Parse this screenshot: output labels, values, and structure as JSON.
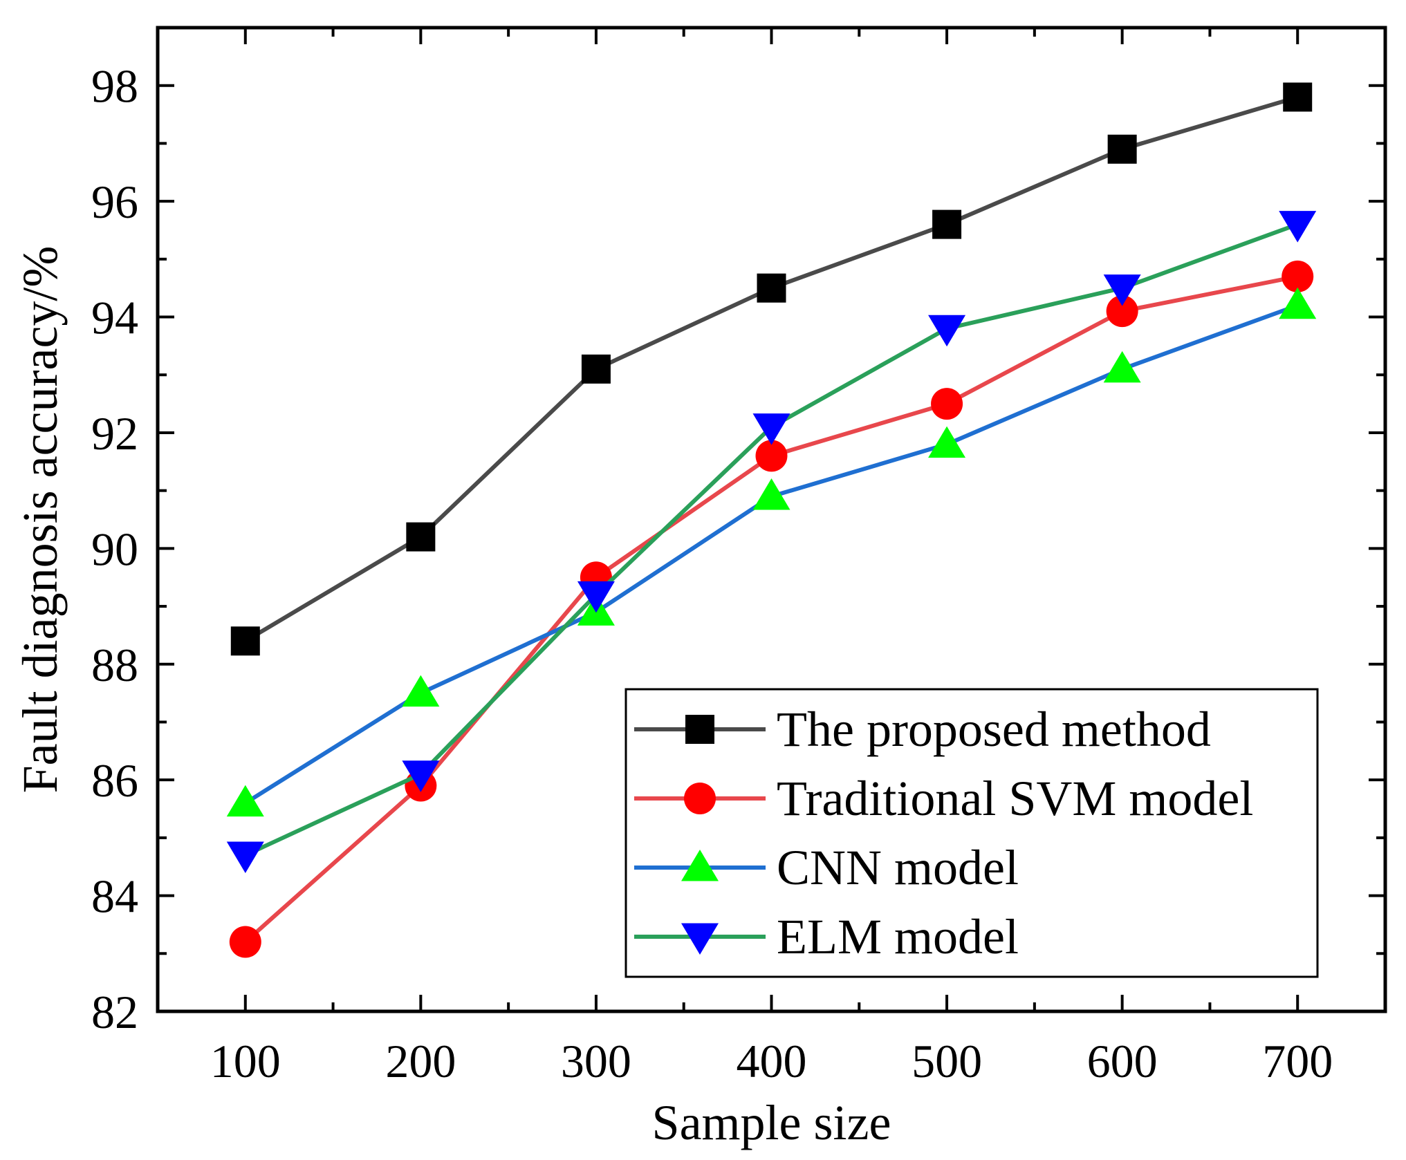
{
  "chart_data": {
    "type": "line",
    "title": "",
    "xlabel": "Sample size",
    "ylabel": "Fault diagnosis accuracy/%",
    "x": [
      100,
      200,
      300,
      400,
      500,
      600,
      700
    ],
    "xlim": [
      50,
      750
    ],
    "ylim": [
      82,
      99
    ],
    "xticks": [
      100,
      200,
      300,
      400,
      500,
      600,
      700
    ],
    "xtick_labels": [
      "100",
      "200",
      "300",
      "400",
      "500",
      "600",
      "700"
    ],
    "yticks": [
      82,
      84,
      86,
      88,
      90,
      92,
      94,
      96,
      98
    ],
    "ytick_labels": [
      "82",
      "84",
      "86",
      "88",
      "90",
      "92",
      "94",
      "96",
      "98"
    ],
    "grid": false,
    "legend_position": "bottom-right",
    "series": [
      {
        "name": "The proposed method",
        "values": [
          88.4,
          90.2,
          93.1,
          94.5,
          95.6,
          96.9,
          97.8
        ],
        "line_color": "#4a4a4a",
        "marker": "square",
        "marker_color": "#000000"
      },
      {
        "name": "Traditional SVM model",
        "values": [
          83.2,
          85.9,
          89.5,
          91.6,
          92.5,
          94.1,
          94.7
        ],
        "line_color": "#e8474c",
        "marker": "circle",
        "marker_color": "#ff0000"
      },
      {
        "name": "CNN model",
        "values": [
          85.6,
          87.5,
          88.9,
          90.9,
          91.8,
          93.1,
          94.2
        ],
        "line_color": "#1f6fd1",
        "marker": "triangle-up",
        "marker_color": "#00ff00"
      },
      {
        "name": "ELM model",
        "values": [
          84.7,
          86.1,
          89.2,
          92.1,
          93.8,
          94.5,
          95.6
        ],
        "line_color": "#2aa05a",
        "marker": "triangle-down",
        "marker_color": "#0000ff"
      }
    ]
  }
}
